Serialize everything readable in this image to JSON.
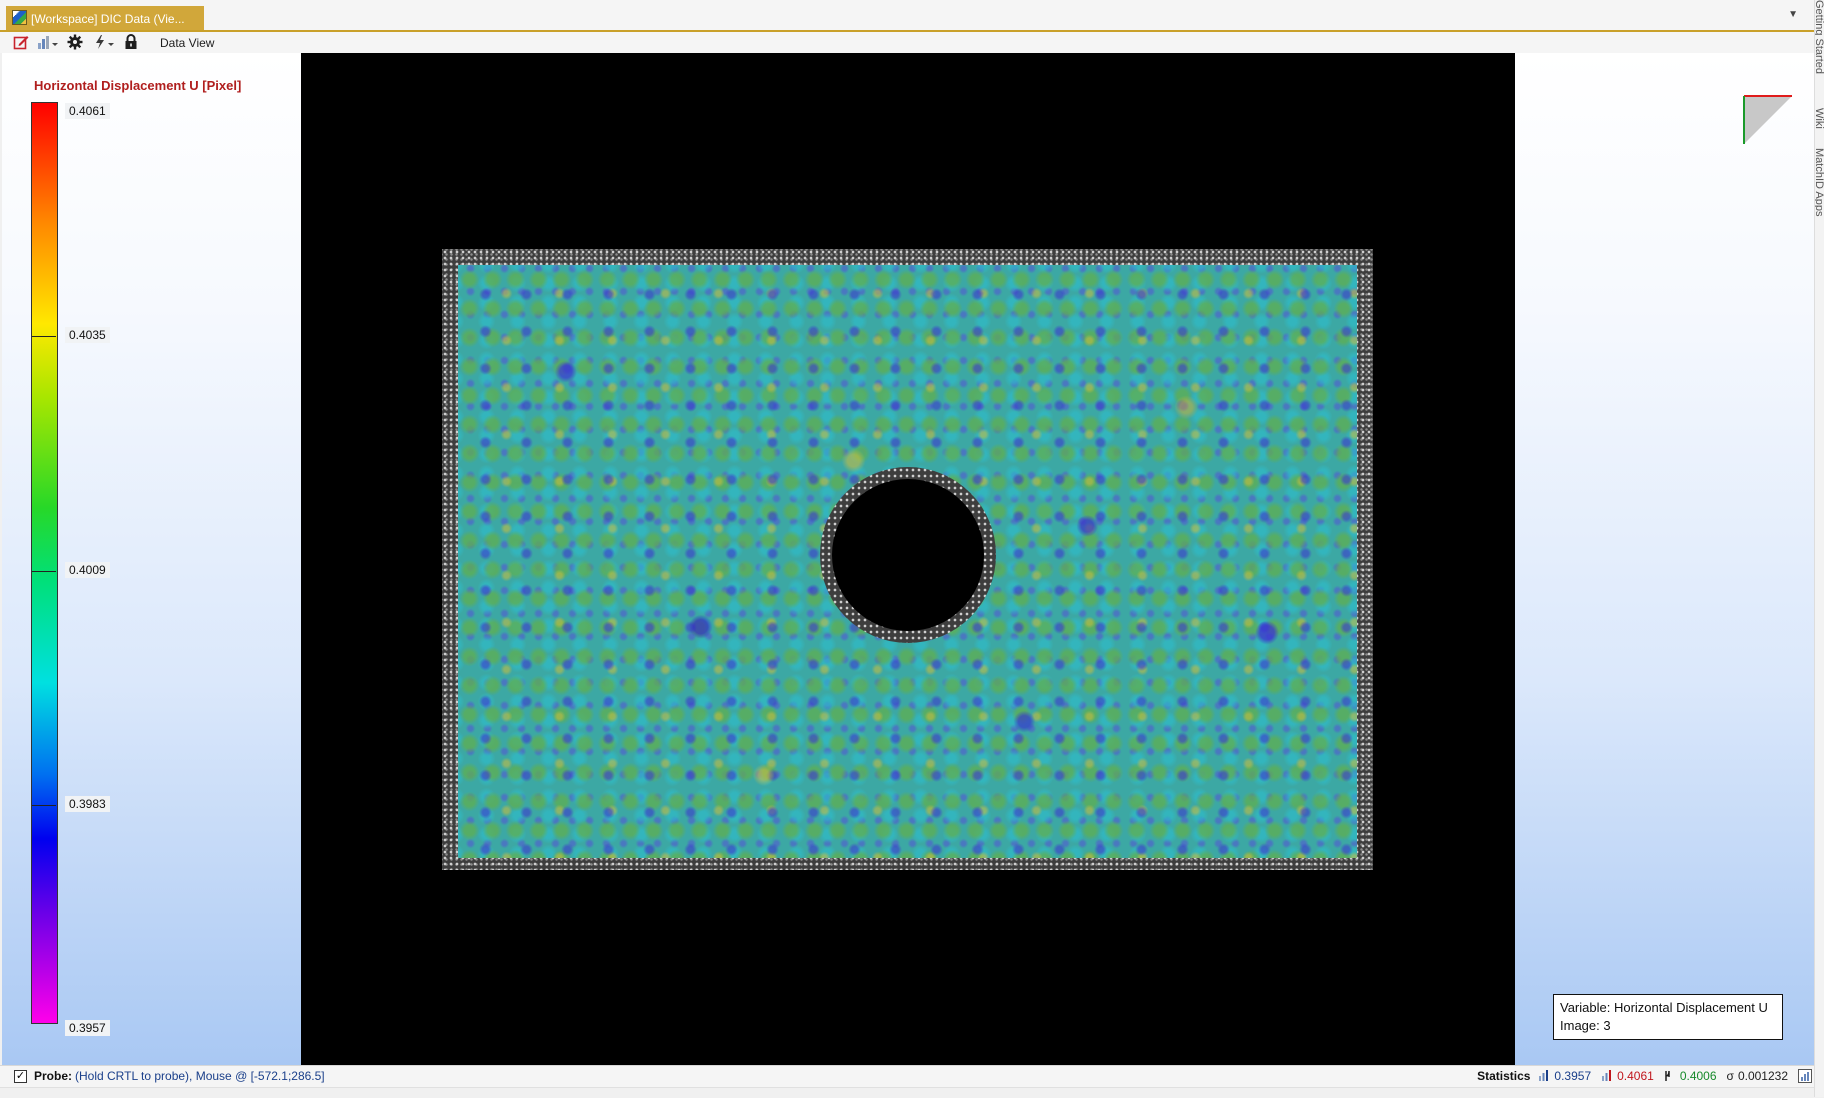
{
  "window": {
    "tab_title": "[Workspace] DIC Data (Vie...",
    "view_label": "Data View"
  },
  "legend": {
    "title": "Horizontal Displacement U [Pixel]",
    "labels": [
      "0.4061",
      "0.4035",
      "0.4009",
      "0.3983",
      "0.3957"
    ],
    "colors": [
      "#ff0000",
      "#ffe800",
      "#27d828",
      "#00e0e0",
      "#0000ef",
      "#ff00ea"
    ]
  },
  "info_box": {
    "variable_line": "Variable: Horizontal Displacement U",
    "image_line": "Image: 3"
  },
  "status": {
    "probe_label": "Probe:",
    "probe_text": "(Hold CRTL to probe), Mouse @ [-572.1;286.5]",
    "statistics_label": "Statistics",
    "min": "0.3957",
    "max": "0.4061",
    "mean": "0.4006",
    "sigma_symbol": "σ",
    "sigma": "0.001232"
  },
  "side_rail": {
    "items": [
      "Getting Started",
      "Wiki",
      "MatchID Apps"
    ]
  },
  "colors": {
    "accent_tab": "#d1a73a",
    "legend_title": "#b01e1e",
    "stat_min": "#1a3f8a",
    "stat_max": "#c0161c",
    "stat_mean": "#178a2b"
  },
  "icons": [
    "edit-icon",
    "chart-dropdown-icon",
    "settings-gear-icon",
    "lightning-dropdown-icon",
    "lock-icon",
    "tab-dropdown-icon"
  ]
}
